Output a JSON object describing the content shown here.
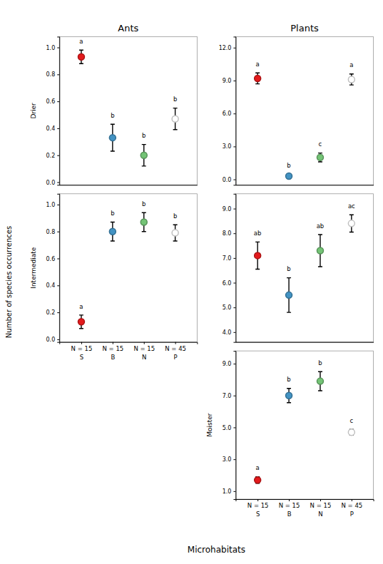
{
  "chart_data": [
    {
      "type": "scatter",
      "title": "Ants",
      "y_label": "Drier",
      "categories": [
        "S",
        "B",
        "N",
        "P"
      ],
      "values": [
        0.93,
        0.33,
        0.2,
        0.47
      ],
      "errors": [
        0.05,
        0.1,
        0.08,
        0.08
      ],
      "annotations": [
        "a",
        "b",
        "b",
        "b"
      ],
      "colors": [
        "#e31a1c",
        "#4393c3",
        "#74c476",
        "#ffffff"
      ],
      "marker": "circle",
      "ylim": [
        -0.02,
        1.08
      ],
      "yticks": [
        {
          "value": 0.0,
          "label": "0.0"
        },
        0.2,
        0.4,
        0.6,
        0.8,
        {
          "value": 1.0,
          "label": "1.0"
        }
      ],
      "grid": false,
      "tick_labels": "y"
    },
    {
      "type": "scatter",
      "y_label": "Intermediate",
      "categories": [
        "N = 15\nS",
        "N = 15\nB",
        "N = 15\nN",
        "N = 45\nP"
      ],
      "values": [
        0.13,
        0.8,
        0.87,
        0.79
      ],
      "errors": [
        0.05,
        0.07,
        0.07,
        0.06
      ],
      "annotations": [
        "a",
        "b",
        "b",
        "b"
      ],
      "colors": [
        "#e31a1c",
        "#4393c3",
        "#74c476",
        "#ffffff"
      ],
      "marker": "circle",
      "ylim": [
        -0.02,
        1.08
      ],
      "yticks": [
        {
          "value": 0.0,
          "label": "0.0"
        },
        0.2,
        0.4,
        0.6,
        0.8,
        {
          "value": 1.0,
          "label": "1.0"
        }
      ],
      "grid": false,
      "tick_labels": true
    },
    {
      "type": "scatter",
      "title": "Plants",
      "categories": [
        "S",
        "B",
        "N",
        "P"
      ],
      "values": [
        9.2,
        0.3,
        2.0,
        9.1
      ],
      "errors": [
        0.5,
        0.15,
        0.4,
        0.5
      ],
      "annotations": [
        "a",
        "b",
        "c",
        "a"
      ],
      "colors": [
        "#e31a1c",
        "#4393c3",
        "#74c476",
        "#ffffff"
      ],
      "marker": "circle",
      "ylim": [
        -0.5,
        13.0
      ],
      "yticks": [
        {
          "value": 0.0,
          "label": "0.0"
        },
        {
          "value": 3.0,
          "label": "3.0"
        },
        {
          "value": 6.0,
          "label": "6.0"
        },
        {
          "value": 9.0,
          "label": "9.0"
        },
        {
          "value": 12.0,
          "label": "12.0"
        }
      ],
      "grid": false,
      "tick_labels": "y"
    },
    {
      "type": "scatter",
      "categories": [
        "S",
        "B",
        "N",
        "P"
      ],
      "values": [
        7.1,
        5.5,
        7.3,
        8.4
      ],
      "errors": [
        0.55,
        0.7,
        0.65,
        0.35
      ],
      "annotations": [
        "ab",
        "b",
        "ab",
        "ac"
      ],
      "colors": [
        "#e31a1c",
        "#4393c3",
        "#74c476",
        "#ffffff"
      ],
      "marker": "circle",
      "ylim": [
        3.6,
        9.6
      ],
      "yticks": [
        {
          "value": 4.0,
          "label": "4.0"
        },
        {
          "value": 5.0,
          "label": "5.0"
        },
        {
          "value": 6.0,
          "label": "6.0"
        },
        {
          "value": 7.0,
          "label": "7.0"
        },
        {
          "value": 8.0,
          "label": "8.0"
        },
        {
          "value": 9.0,
          "label": "9.0"
        }
      ],
      "grid": false,
      "tick_labels": "y"
    },
    {
      "type": "scatter",
      "y_label": "Moister",
      "categories": [
        "N = 15\nS",
        "N = 15\nB",
        "N = 15\nN",
        "N = 45\nP"
      ],
      "values": [
        1.7,
        7.0,
        7.9,
        4.7
      ],
      "errors": [
        0.2,
        0.45,
        0.6,
        0.18
      ],
      "annotations": [
        "a",
        "b",
        "b",
        "c"
      ],
      "colors": [
        "#e31a1c",
        "#4393c3",
        "#74c476",
        "#ffffff"
      ],
      "marker": "circle",
      "ylim": [
        0.5,
        9.8
      ],
      "yticks": [
        {
          "value": 1.0,
          "label": "1.0"
        },
        {
          "value": 3.0,
          "label": "3.0"
        },
        {
          "value": 5.0,
          "label": "5.0"
        },
        {
          "value": 7.0,
          "label": "7.0"
        },
        {
          "value": 9.0,
          "label": "9.0"
        }
      ],
      "grid": false,
      "tick_labels": true
    }
  ],
  "x_label": "Microhabitats",
  "y_label": "Number of species occurrences"
}
